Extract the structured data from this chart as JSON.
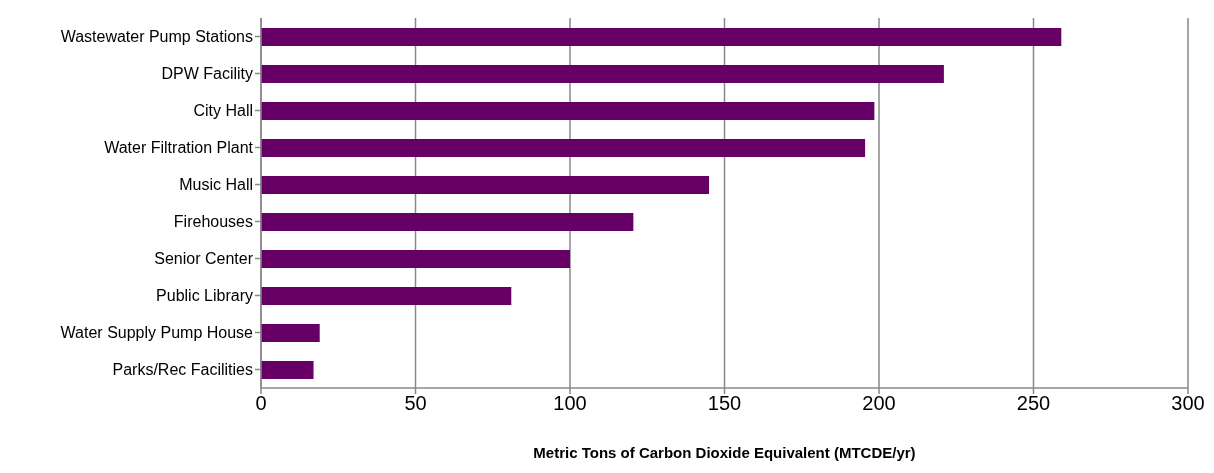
{
  "chart_data": {
    "type": "bar",
    "orientation": "horizontal",
    "xlabel": "Metric Tons of Carbon Dioxide Equivalent (MTCDE/yr)",
    "categories": [
      "Wastewater Pump Stations",
      "DPW Facility",
      "City Hall",
      "Water Filtration Plant",
      "Music Hall",
      "Firehouses",
      "Senior Center",
      "Public Library",
      "Water Supply Pump House",
      "Parks/Rec Facilities"
    ],
    "values": [
      259,
      221,
      198.5,
      195.5,
      145,
      120.5,
      100,
      81,
      19,
      17
    ],
    "color": "#660066",
    "xlim": [
      0,
      300
    ],
    "xticks": [
      0,
      50,
      100,
      150,
      200,
      250,
      300
    ],
    "grid": "x"
  }
}
